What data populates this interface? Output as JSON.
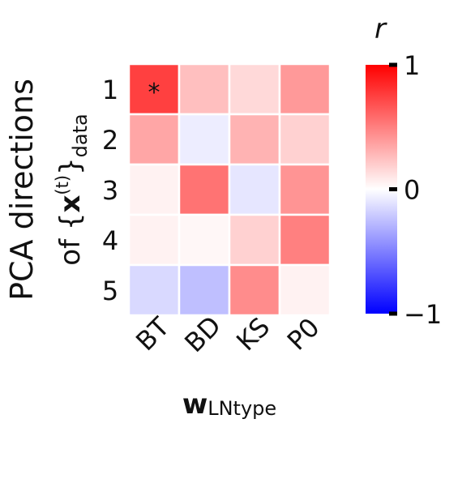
{
  "chart_data": {
    "type": "heatmap",
    "rows": [
      "1",
      "2",
      "3",
      "4",
      "5"
    ],
    "columns": [
      "BT",
      "BD",
      "KS",
      "P0"
    ],
    "values": [
      [
        0.75,
        0.25,
        0.15,
        0.4
      ],
      [
        0.35,
        -0.07,
        0.3,
        0.18
      ],
      [
        0.05,
        0.55,
        -0.1,
        0.42
      ],
      [
        0.05,
        0.03,
        0.18,
        0.5
      ],
      [
        -0.15,
        -0.25,
        0.45,
        0.05
      ]
    ],
    "annotations": [
      {
        "row": 0,
        "col": 0,
        "text": "*"
      }
    ],
    "ylabel": {
      "line1": "PCA directions",
      "line2_prefix": "of {",
      "line2_symbol": "x",
      "line2_sup": "(t)",
      "line2_close": "}",
      "line2_sub": "data"
    },
    "xlabel": {
      "symbol": "w",
      "sub": "LNtype"
    },
    "colorbar": {
      "label": "r",
      "cmap": "bwr",
      "range": [
        -1,
        1
      ],
      "ticks": [
        {
          "value": 1,
          "label": "1"
        },
        {
          "value": 0,
          "label": "0"
        },
        {
          "value": -1,
          "label": "−1"
        }
      ]
    },
    "colors": {
      "min": "#0000ff",
      "mid": "#ffffff",
      "max": "#ff0000",
      "cell_border": "#ffffff"
    },
    "grid": false
  }
}
